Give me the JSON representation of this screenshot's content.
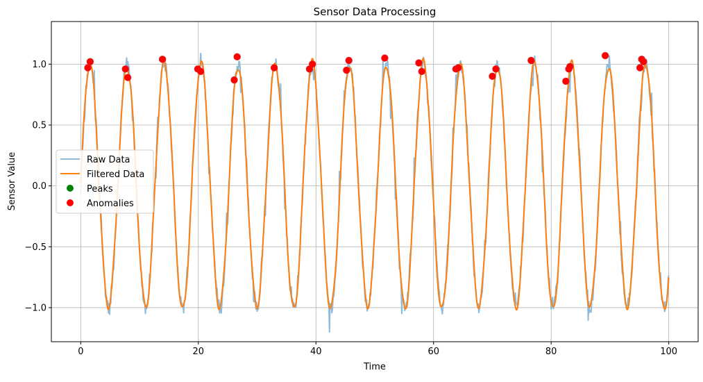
{
  "chart_data": {
    "type": "line",
    "title": "Sensor Data Processing",
    "xlabel": "Time",
    "ylabel": "Sensor Value",
    "xlim": [
      -5,
      105
    ],
    "ylim": [
      -1.28,
      1.35
    ],
    "xticks": [
      0,
      20,
      40,
      60,
      80,
      100
    ],
    "xtick_labels": [
      "0",
      "20",
      "40",
      "60",
      "80",
      "100"
    ],
    "yticks": [
      -1.0,
      -0.5,
      0.0,
      0.5,
      1.0
    ],
    "ytick_labels": [
      "−1.0",
      "−0.5",
      "0.0",
      "0.5",
      "1.0"
    ],
    "grid": true,
    "legend_position": "center-left",
    "signal": {
      "period": 6.3,
      "amplitude": 1.0,
      "x_start": 0,
      "x_end": 100,
      "noise_amplitude": 0.12
    },
    "series": [
      {
        "name": "Raw Data",
        "kind": "line",
        "color": "#8fbbd9"
      },
      {
        "name": "Filtered Data",
        "kind": "line",
        "color": "#ff7f0e"
      },
      {
        "name": "Peaks",
        "kind": "scatter",
        "color": "#008000"
      },
      {
        "name": "Anomalies",
        "kind": "scatter",
        "color": "#ff0000",
        "edge_color": "#d62728",
        "points": [
          [
            1.2,
            0.97
          ],
          [
            1.6,
            1.02
          ],
          [
            7.6,
            0.96
          ],
          [
            8.0,
            0.89
          ],
          [
            13.9,
            1.04
          ],
          [
            19.9,
            0.96
          ],
          [
            20.4,
            0.94
          ],
          [
            26.1,
            0.87
          ],
          [
            26.6,
            1.06
          ],
          [
            32.9,
            0.97
          ],
          [
            38.9,
            0.96
          ],
          [
            39.4,
            1.0
          ],
          [
            45.2,
            0.95
          ],
          [
            45.6,
            1.03
          ],
          [
            51.7,
            1.05
          ],
          [
            57.5,
            1.01
          ],
          [
            58.0,
            0.94
          ],
          [
            63.8,
            0.96
          ],
          [
            64.2,
            0.97
          ],
          [
            70.0,
            0.9
          ],
          [
            70.6,
            0.96
          ],
          [
            76.6,
            1.03
          ],
          [
            82.5,
            0.86
          ],
          [
            83.0,
            0.96
          ],
          [
            83.2,
            0.98
          ],
          [
            89.2,
            1.07
          ],
          [
            95.1,
            0.97
          ],
          [
            95.4,
            1.04
          ],
          [
            95.7,
            1.02
          ]
        ]
      }
    ]
  }
}
